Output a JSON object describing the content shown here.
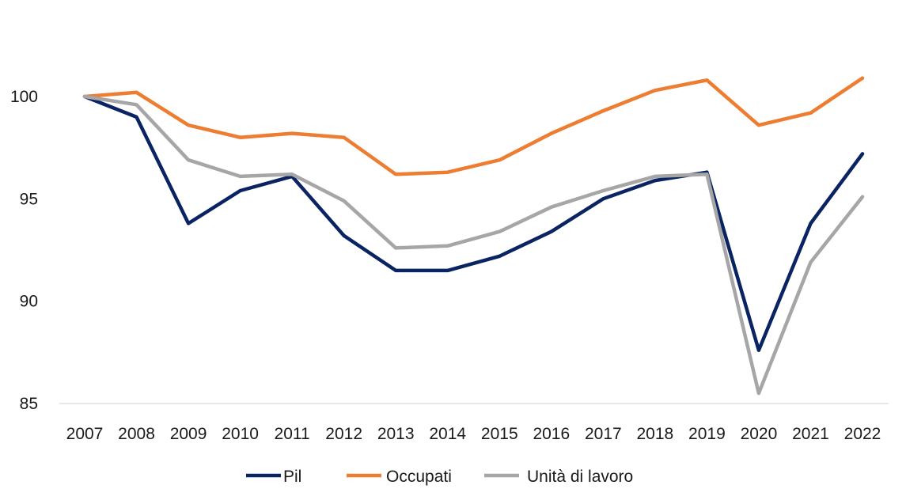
{
  "chart_data": {
    "type": "line",
    "title": "",
    "xlabel": "",
    "ylabel": "",
    "ylim": [
      85,
      102
    ],
    "yticks": [
      85,
      90,
      95,
      100
    ],
    "grid": false,
    "legend_position": "bottom",
    "categories": [
      "2007",
      "2008",
      "2009",
      "2010",
      "2011",
      "2012",
      "2013",
      "2014",
      "2015",
      "2016",
      "2017",
      "2018",
      "2019",
      "2020",
      "2021",
      "2022"
    ],
    "series": [
      {
        "name": "Pil",
        "color": "#0a2463",
        "values": [
          100.0,
          99.0,
          93.8,
          95.4,
          96.1,
          93.2,
          91.5,
          91.5,
          92.2,
          93.4,
          95.0,
          95.9,
          96.3,
          87.6,
          93.8,
          97.2
        ]
      },
      {
        "name": "Occupati",
        "color": "#ed7d31",
        "values": [
          100.0,
          100.2,
          98.6,
          98.0,
          98.2,
          98.0,
          96.2,
          96.3,
          96.9,
          98.2,
          99.3,
          100.3,
          100.8,
          98.6,
          99.2,
          100.9
        ]
      },
      {
        "name": "Unità di lavoro",
        "color": "#a6a6a6",
        "values": [
          100.0,
          99.6,
          96.9,
          96.1,
          96.2,
          94.9,
          92.6,
          92.7,
          93.4,
          94.6,
          95.4,
          96.1,
          96.2,
          85.5,
          91.9,
          95.1
        ]
      }
    ]
  }
}
